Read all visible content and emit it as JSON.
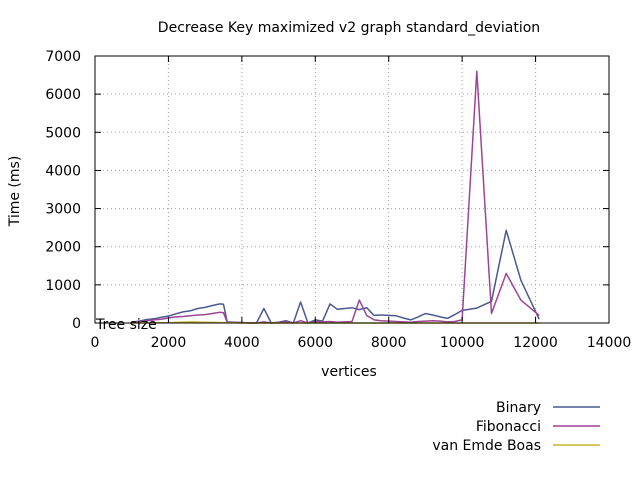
{
  "chart_data": {
    "type": "line",
    "title": "Decrease Key maximized v2 graph standard_deviation",
    "xlabel": "vertices",
    "ylabel": "Time (ms)",
    "xlim": [
      0,
      14000
    ],
    "ylim": [
      0,
      7000
    ],
    "xticks": [
      0,
      2000,
      4000,
      6000,
      8000,
      10000,
      12000,
      14000
    ],
    "yticks": [
      0,
      1000,
      2000,
      3000,
      4000,
      5000,
      6000,
      7000
    ],
    "grid": true,
    "legend_position": "bottom-right, below the plot",
    "annotation": "Tree size",
    "colors": {
      "axis": "#000000",
      "grid": "#a0a0a0"
    },
    "series": [
      {
        "name": "Binary",
        "color": "#4b5a8e",
        "x": [
          1000,
          1200,
          1400,
          1600,
          1800,
          2000,
          2200,
          2400,
          2600,
          2800,
          3000,
          3200,
          3400,
          3500,
          3600,
          4000,
          4400,
          4600,
          4800,
          5000,
          5200,
          5400,
          5600,
          5800,
          6000,
          6200,
          6400,
          6600,
          6800,
          7000,
          7200,
          7400,
          7600,
          7800,
          8000,
          8200,
          8400,
          8600,
          8800,
          9000,
          9200,
          9400,
          9600,
          9800,
          10000,
          10400,
          10800,
          11200,
          11600,
          12100
        ],
        "values": [
          20,
          50,
          90,
          110,
          150,
          180,
          240,
          290,
          320,
          380,
          410,
          460,
          500,
          490,
          30,
          10,
          0,
          380,
          0,
          20,
          60,
          0,
          550,
          0,
          80,
          50,
          500,
          360,
          380,
          400,
          350,
          400,
          200,
          210,
          200,
          190,
          130,
          80,
          160,
          250,
          210,
          160,
          120,
          220,
          330,
          390,
          570,
          2430,
          1120,
          100
        ]
      },
      {
        "name": "Fibonacci",
        "color": "#9c4596",
        "x": [
          1000,
          1200,
          1400,
          1600,
          1800,
          2000,
          2200,
          2400,
          2600,
          2800,
          3000,
          3200,
          3400,
          3500,
          3600,
          4000,
          4400,
          4600,
          4800,
          5000,
          5200,
          5400,
          5600,
          5800,
          6000,
          6200,
          6400,
          6600,
          6800,
          7000,
          7200,
          7400,
          7600,
          7800,
          8000,
          8200,
          8400,
          8600,
          8800,
          9000,
          9200,
          9400,
          9600,
          9800,
          10000,
          10400,
          10800,
          11200,
          11600,
          12100
        ],
        "values": [
          10,
          30,
          60,
          80,
          100,
          130,
          160,
          170,
          190,
          210,
          220,
          250,
          280,
          270,
          20,
          10,
          0,
          30,
          0,
          10,
          30,
          0,
          60,
          0,
          40,
          30,
          40,
          20,
          30,
          40,
          600,
          200,
          80,
          60,
          50,
          40,
          30,
          20,
          40,
          50,
          60,
          50,
          30,
          40,
          80,
          6600,
          250,
          1300,
          600,
          200
        ]
      },
      {
        "name": "van Emde Boas",
        "color": "#c8b82a",
        "x": [
          1000,
          2000,
          2600,
          3000,
          3500,
          4000,
          5000,
          6000,
          7000,
          8000,
          9000,
          10000,
          11000,
          12100
        ],
        "values": [
          0,
          10,
          30,
          20,
          10,
          0,
          0,
          0,
          0,
          0,
          0,
          0,
          0,
          0
        ]
      }
    ]
  }
}
